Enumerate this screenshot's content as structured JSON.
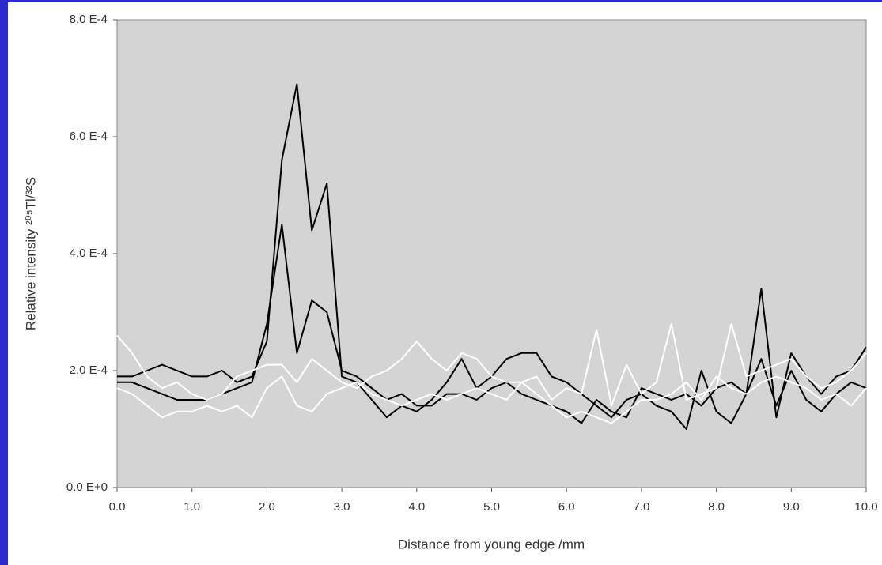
{
  "chart_data": {
    "type": "line",
    "xlabel": "Distance from young edge /mm",
    "ylabel": "Relative intensity ²⁰⁵Tl/³²S",
    "x": [
      0,
      0.2,
      0.4,
      0.6,
      0.8,
      1,
      1.2,
      1.4,
      1.6,
      1.8,
      2,
      2.2,
      2.4,
      2.6,
      2.8,
      3,
      3.2,
      3.4,
      3.6,
      3.8,
      4,
      4.2,
      4.4,
      4.6,
      4.8,
      5,
      5.2,
      5.4,
      5.6,
      5.8,
      6,
      6.2,
      6.4,
      6.6,
      6.8,
      7,
      7.2,
      7.4,
      7.6,
      7.8,
      8,
      8.2,
      8.4,
      8.6,
      8.8,
      9,
      9.2,
      9.4,
      9.6,
      9.8,
      10
    ],
    "series": [
      {
        "color": "#000000",
        "values": [
          0.00019,
          0.00019,
          0.0002,
          0.00021,
          0.0002,
          0.00019,
          0.00019,
          0.0002,
          0.00018,
          0.00019,
          0.00025,
          0.00056,
          0.00069,
          0.00044,
          0.00052,
          0.00019,
          0.00018,
          0.00015,
          0.00012,
          0.00014,
          0.00013,
          0.00015,
          0.00018,
          0.00022,
          0.00017,
          0.00019,
          0.00022,
          0.00023,
          0.00023,
          0.00019,
          0.00018,
          0.00016,
          0.00014,
          0.00012,
          0.00015,
          0.00016,
          0.00014,
          0.00013,
          0.0001,
          0.0002,
          0.00013,
          0.00011,
          0.00016,
          0.00034,
          0.00012,
          0.00023,
          0.00019,
          0.00016,
          0.00019,
          0.0002,
          0.00024
        ]
      },
      {
        "color": "#000000",
        "values": [
          0.00018,
          0.00018,
          0.00017,
          0.00016,
          0.00015,
          0.00015,
          0.00015,
          0.00016,
          0.00017,
          0.00018,
          0.00028,
          0.00045,
          0.00023,
          0.00032,
          0.0003,
          0.0002,
          0.00019,
          0.00017,
          0.00015,
          0.00016,
          0.00014,
          0.00014,
          0.00016,
          0.00016,
          0.00015,
          0.00017,
          0.00018,
          0.00016,
          0.00015,
          0.00014,
          0.00013,
          0.00011,
          0.00015,
          0.00013,
          0.00012,
          0.00017,
          0.00016,
          0.00015,
          0.00016,
          0.00014,
          0.00017,
          0.00018,
          0.00016,
          0.00022,
          0.00014,
          0.0002,
          0.00015,
          0.00013,
          0.00016,
          0.00018,
          0.00017
        ]
      },
      {
        "color": "#ffffff",
        "values": [
          0.00026,
          0.00023,
          0.00019,
          0.00017,
          0.00018,
          0.00016,
          0.00015,
          0.00016,
          0.00019,
          0.0002,
          0.00021,
          0.00021,
          0.00018,
          0.00022,
          0.0002,
          0.00018,
          0.00017,
          0.00019,
          0.0002,
          0.00022,
          0.00025,
          0.00022,
          0.0002,
          0.00023,
          0.00022,
          0.00019,
          0.00018,
          0.00018,
          0.00019,
          0.00015,
          0.00017,
          0.00016,
          0.00027,
          0.00014,
          0.00021,
          0.00016,
          0.00018,
          0.00028,
          0.00015,
          0.00016,
          0.00017,
          0.00028,
          0.00019,
          0.0002,
          0.00021,
          0.00022,
          0.00019,
          0.00017,
          0.00018,
          0.0002,
          0.00023
        ]
      },
      {
        "color": "#ffffff",
        "values": [
          0.00017,
          0.00016,
          0.00014,
          0.00012,
          0.00013,
          0.00013,
          0.00014,
          0.00013,
          0.00014,
          0.00012,
          0.00017,
          0.00019,
          0.00014,
          0.00013,
          0.00016,
          0.00017,
          0.00018,
          0.00016,
          0.00015,
          0.00014,
          0.00015,
          0.00016,
          0.00015,
          0.00016,
          0.00017,
          0.00016,
          0.00015,
          0.00018,
          0.00016,
          0.00014,
          0.00012,
          0.00013,
          0.00012,
          0.00011,
          0.00013,
          0.00015,
          0.00015,
          0.00016,
          0.00018,
          0.00015,
          0.00019,
          0.00017,
          0.00016,
          0.00018,
          0.00019,
          0.00018,
          0.00017,
          0.00015,
          0.00016,
          0.00014,
          0.00017
        ]
      }
    ],
    "xlim": [
      0,
      10
    ],
    "xticks": [
      {
        "value": 0,
        "label": "0.0"
      },
      {
        "value": 1,
        "label": "1.0"
      },
      {
        "value": 2,
        "label": "2.0"
      },
      {
        "value": 3,
        "label": "3.0"
      },
      {
        "value": 4,
        "label": "4.0"
      },
      {
        "value": 5,
        "label": "5.0"
      },
      {
        "value": 6,
        "label": "6.0"
      },
      {
        "value": 7,
        "label": "7.0"
      },
      {
        "value": 8,
        "label": "8.0"
      },
      {
        "value": 9,
        "label": "9.0"
      },
      {
        "value": 10,
        "label": "10.0"
      }
    ],
    "ylim": [
      0,
      0.0008
    ],
    "yticks": [
      {
        "value": 0,
        "label": "0.0 E+0"
      },
      {
        "value": 0.0002,
        "label": "2.0 E-4"
      },
      {
        "value": 0.0004,
        "label": "4.0 E-4"
      },
      {
        "value": 0.0006,
        "label": "6.0 E-4"
      },
      {
        "value": 0.0008,
        "label": "8.0 E-4"
      }
    ]
  }
}
